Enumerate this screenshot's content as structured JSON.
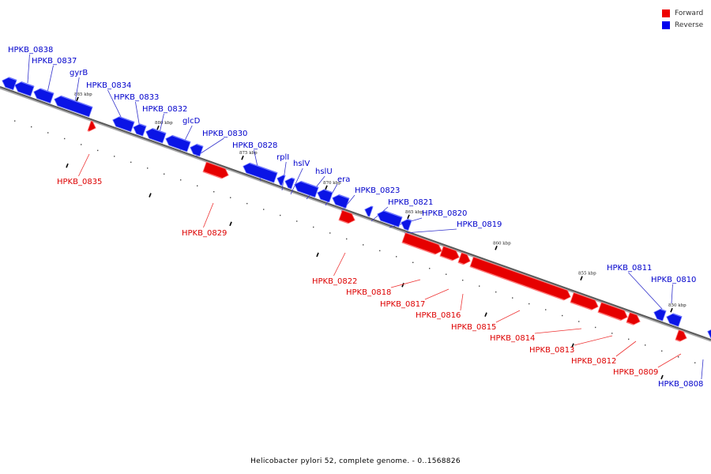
{
  "legend": [
    {
      "label": "Forward",
      "color": "#ee0000"
    },
    {
      "label": "Reverse",
      "color": "#0000ee"
    }
  ],
  "caption": "Helicobacter pylori 52, complete genome. - 0..1568826",
  "axis_labels": [
    "885 kbp",
    "880 kbp",
    "875 kbp",
    "870 kbp",
    "865 kbp",
    "860 kbp",
    "855 kbp",
    "850 kbp"
  ],
  "genes": {
    "reverse": [
      "HPKB_0838",
      "HPKB_0837",
      "gyrB",
      "HPKB_0834",
      "HPKB_0833",
      "HPKB_0832",
      "glcD",
      "HPKB_0830",
      "HPKB_0828",
      "rplI",
      "hslV",
      "hslU",
      "era",
      "HPKB_0823",
      "HPKB_0821",
      "HPKB_0820",
      "HPKB_0819",
      "HPKB_0811",
      "HPKB_0810",
      "HPKB_0808"
    ],
    "forward": [
      "HPKB_0835",
      "HPKB_0829",
      "HPKB_0822",
      "HPKB_0818",
      "HPKB_0817",
      "HPKB_0816",
      "HPKB_0815",
      "HPKB_0814",
      "HPKB_0813",
      "HPKB_0812",
      "HPKB_0809"
    ]
  }
}
